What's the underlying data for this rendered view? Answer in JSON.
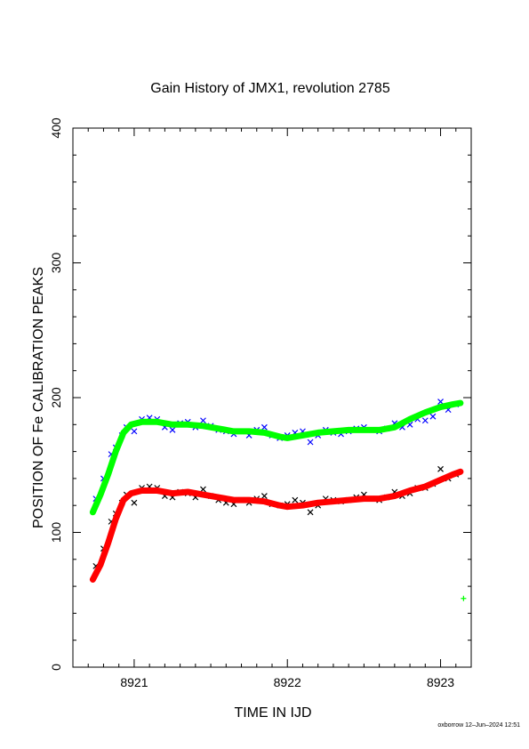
{
  "chart_data": {
    "type": "scatter",
    "title": "Gain History of JMX1, revolution 2785",
    "xlabel": "TIME IN IJD",
    "ylabel": "POSITION OF Fe CALIBRATION PEAKS",
    "xlim": [
      8920.6,
      8923.2
    ],
    "ylim": [
      0,
      400
    ],
    "x_ticks": [
      8921,
      8922,
      8923
    ],
    "x_tick_labels": [
      "8921",
      "8922",
      "8923"
    ],
    "y_ticks": [
      0,
      100,
      200,
      300,
      400
    ],
    "y_tick_labels": [
      "0",
      "100",
      "200",
      "300",
      "400"
    ],
    "grid": false,
    "legend": "none",
    "colors": {
      "upper_points": "#0000ff",
      "upper_fit": "#00ff00",
      "lower_points": "#000000",
      "lower_fit": "#ff0000"
    },
    "series": [
      {
        "role": "upper_points",
        "marker": "x",
        "x": [
          8920.75,
          8920.8,
          8920.85,
          8920.88,
          8920.92,
          8920.95,
          8921.0,
          8921.05,
          8921.1,
          8921.15,
          8921.2,
          8921.25,
          8921.3,
          8921.35,
          8921.4,
          8921.45,
          8921.5,
          8921.55,
          8921.6,
          8921.65,
          8921.7,
          8921.75,
          8921.8,
          8921.85,
          8921.9,
          8921.95,
          8922.0,
          8922.05,
          8922.1,
          8922.15,
          8922.2,
          8922.25,
          8922.3,
          8922.35,
          8922.4,
          8922.45,
          8922.5,
          8922.55,
          8922.6,
          8922.65,
          8922.7,
          8922.75,
          8922.8,
          8922.85,
          8922.9,
          8922.95,
          8923.0,
          8923.05,
          8923.1
        ],
        "y": [
          125,
          140,
          158,
          163,
          172,
          178,
          175,
          184,
          185,
          184,
          178,
          176,
          181,
          182,
          178,
          183,
          179,
          176,
          175,
          173,
          175,
          172,
          176,
          178,
          172,
          170,
          172,
          174,
          175,
          167,
          172,
          176,
          174,
          173,
          175,
          177,
          178,
          176,
          175,
          177,
          181,
          178,
          180,
          184,
          183,
          186,
          197,
          191,
          195
        ]
      },
      {
        "role": "upper_fit",
        "marker": "+",
        "x": [
          8920.73,
          8920.78,
          8920.83,
          8920.88,
          8920.93,
          8920.98,
          8921.05,
          8921.15,
          8921.25,
          8921.35,
          8921.45,
          8921.55,
          8921.65,
          8921.75,
          8921.85,
          8921.95,
          8922.0,
          8922.1,
          8922.2,
          8922.3,
          8922.4,
          8922.5,
          8922.6,
          8922.7,
          8922.8,
          8922.9,
          8923.0,
          8923.08,
          8923.13
        ],
        "y": [
          115,
          128,
          143,
          160,
          174,
          180,
          182,
          182,
          180,
          180,
          179,
          177,
          175,
          175,
          174,
          171,
          170,
          172,
          174,
          175,
          176,
          176,
          176,
          178,
          184,
          189,
          193,
          195,
          196
        ]
      },
      {
        "role": "lower_points",
        "marker": "x",
        "x": [
          8920.75,
          8920.8,
          8920.85,
          8920.88,
          8920.92,
          8920.95,
          8921.0,
          8921.05,
          8921.1,
          8921.15,
          8921.2,
          8921.25,
          8921.3,
          8921.35,
          8921.4,
          8921.45,
          8921.5,
          8921.55,
          8921.6,
          8921.65,
          8921.7,
          8921.75,
          8921.8,
          8921.85,
          8921.9,
          8921.95,
          8922.0,
          8922.05,
          8922.1,
          8922.15,
          8922.2,
          8922.25,
          8922.3,
          8922.35,
          8922.4,
          8922.45,
          8922.5,
          8922.55,
          8922.6,
          8922.65,
          8922.7,
          8922.75,
          8922.8,
          8922.85,
          8922.9,
          8922.95,
          8923.0,
          8923.05,
          8923.1
        ],
        "y": [
          75,
          88,
          108,
          114,
          122,
          128,
          122,
          133,
          134,
          133,
          127,
          126,
          130,
          129,
          126,
          132,
          127,
          124,
          122,
          121,
          124,
          122,
          125,
          127,
          121,
          120,
          121,
          124,
          122,
          115,
          120,
          125,
          124,
          123,
          124,
          126,
          128,
          125,
          124,
          126,
          130,
          127,
          129,
          133,
          133,
          136,
          147,
          140,
          143
        ]
      },
      {
        "role": "lower_fit",
        "marker": "+",
        "x": [
          8920.73,
          8920.78,
          8920.83,
          8920.88,
          8920.93,
          8920.98,
          8921.05,
          8921.15,
          8921.25,
          8921.35,
          8921.45,
          8921.55,
          8921.65,
          8921.75,
          8921.85,
          8921.95,
          8922.0,
          8922.1,
          8922.2,
          8922.3,
          8922.4,
          8922.5,
          8922.6,
          8922.7,
          8922.8,
          8922.9,
          8923.0,
          8923.08,
          8923.13
        ],
        "y": [
          65,
          76,
          92,
          110,
          124,
          129,
          131,
          131,
          129,
          130,
          128,
          126,
          124,
          124,
          123,
          120,
          119,
          120,
          122,
          123,
          124,
          125,
          125,
          127,
          131,
          134,
          139,
          143,
          145
        ]
      },
      {
        "role": "stray_point",
        "marker": "+",
        "x": [
          8923.15
        ],
        "y": [
          51
        ]
      }
    ]
  },
  "footer": {
    "text": "oxborrow 12–Jun–2024 12:51"
  }
}
